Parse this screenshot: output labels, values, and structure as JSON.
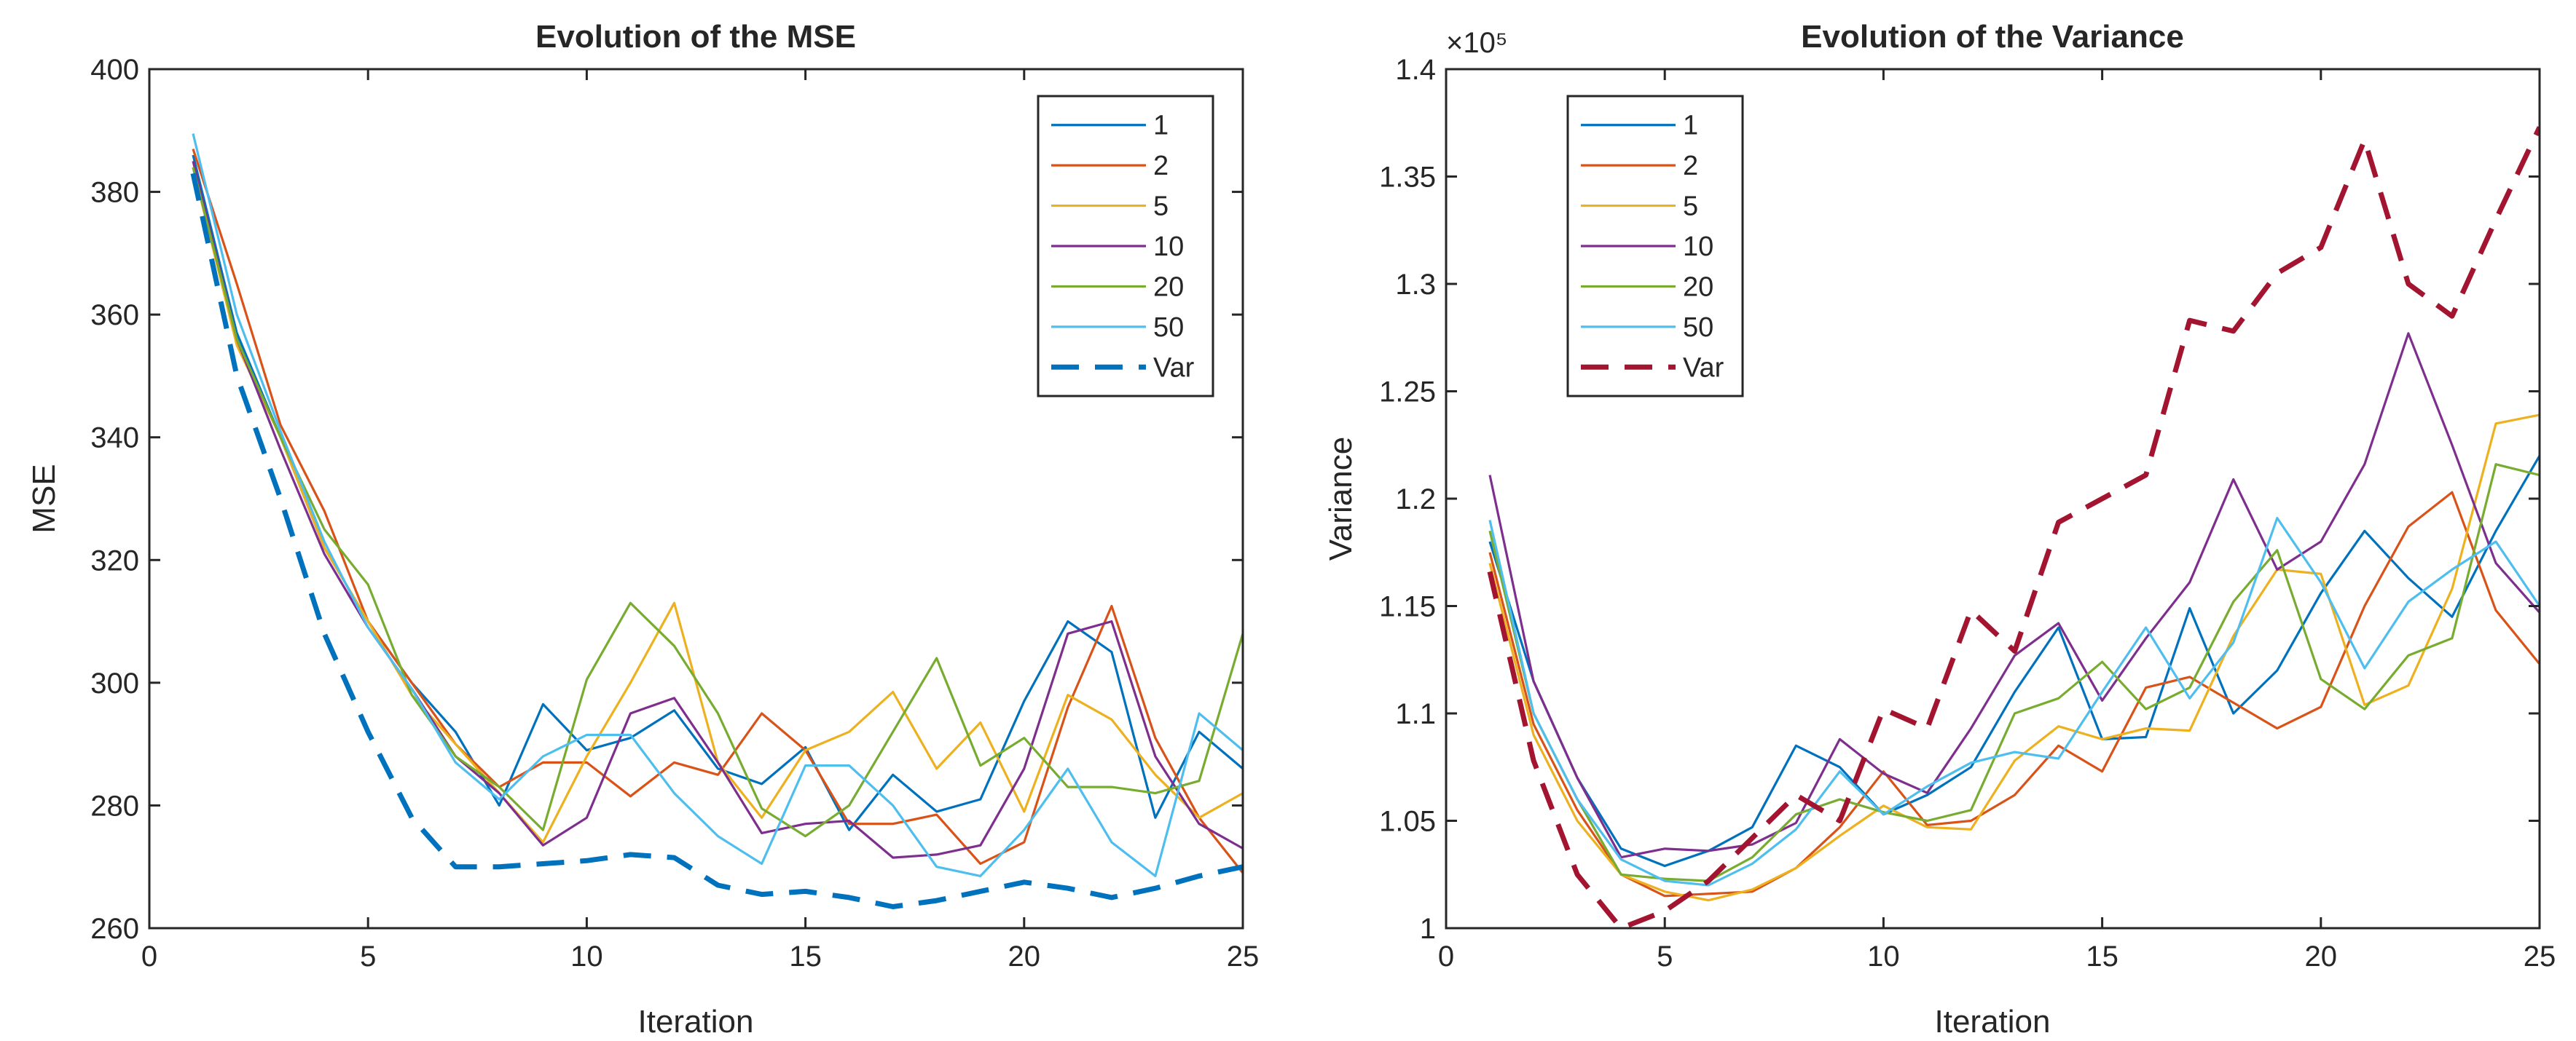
{
  "chart_data": [
    {
      "type": "line",
      "title": "Evolution of the MSE",
      "xlabel": "Iteration",
      "ylabel": "MSE",
      "xlim": [
        0,
        25
      ],
      "ylim": [
        260,
        400
      ],
      "xticks": [
        "0",
        "5",
        "10",
        "15",
        "20",
        "25"
      ],
      "yticks": [
        "260",
        "280",
        "300",
        "320",
        "340",
        "360",
        "380",
        "400"
      ],
      "exponent_label": "",
      "legend_position": "top-right",
      "x": [
        1,
        2,
        3,
        4,
        5,
        6,
        7,
        8,
        9,
        10,
        11,
        12,
        13,
        14,
        15,
        16,
        17,
        18,
        19,
        20,
        21,
        22,
        23,
        24,
        25
      ],
      "series": [
        {
          "name": "1",
          "color": "#0072BD",
          "dashed": false,
          "values": [
            386,
            357,
            340,
            322,
            310,
            300,
            292,
            280,
            296.5,
            289,
            291,
            295.5,
            286,
            283.5,
            289.5,
            276,
            285,
            279,
            281,
            297,
            310,
            305,
            278,
            292,
            286
          ]
        },
        {
          "name": "2",
          "color": "#D95319",
          "dashed": false,
          "values": [
            387,
            365,
            342,
            328,
            310,
            300,
            290,
            283,
            287,
            287,
            281.5,
            287,
            285,
            295,
            289,
            277,
            277,
            278.5,
            270.5,
            274,
            296,
            312.5,
            291,
            278,
            269
          ]
        },
        {
          "name": "5",
          "color": "#EDB120",
          "dashed": false,
          "values": [
            384,
            355,
            340,
            322,
            310,
            298,
            290,
            282,
            274,
            288,
            300,
            313,
            287,
            278,
            289,
            292,
            298.5,
            286,
            293.5,
            279,
            298,
            294,
            285,
            278,
            282
          ]
        },
        {
          "name": "10",
          "color": "#7E2F8E",
          "dashed": false,
          "values": [
            385,
            356,
            338,
            321,
            309,
            299,
            288,
            282,
            273.5,
            278,
            295,
            297.5,
            287,
            275.5,
            277,
            277.5,
            271.5,
            272,
            273.5,
            286,
            308,
            310,
            288,
            277,
            273
          ]
        },
        {
          "name": "20",
          "color": "#77AC30",
          "dashed": false,
          "values": [
            384,
            356,
            340,
            325,
            316,
            298,
            288,
            283,
            276,
            300.5,
            313,
            306,
            295,
            279.5,
            275,
            280,
            292,
            304,
            286.5,
            291,
            283,
            283,
            282,
            284,
            308
          ]
        },
        {
          "name": "50",
          "color": "#4DBEEE",
          "dashed": false,
          "values": [
            389.5,
            360,
            341,
            323,
            309,
            299,
            287,
            281,
            288,
            291.5,
            291.5,
            282,
            275,
            270.5,
            286.5,
            286.5,
            280,
            270,
            268.5,
            276,
            286,
            274,
            268.5,
            295,
            289
          ]
        },
        {
          "name": "Var",
          "color": "#0072BD",
          "dashed": true,
          "values": [
            383,
            350,
            330,
            308,
            292,
            278,
            270,
            270,
            270.5,
            271,
            272,
            271.5,
            267,
            265.5,
            266,
            265,
            263.5,
            264.5,
            266,
            267.5,
            266.5,
            265,
            266.5,
            268.5,
            270
          ]
        }
      ]
    },
    {
      "type": "line",
      "title": "Evolution of the Variance",
      "xlabel": "Iteration",
      "ylabel": "Variance",
      "xlim": [
        0,
        25
      ],
      "ylim": [
        100000,
        140000
      ],
      "xticks": [
        "0",
        "5",
        "10",
        "15",
        "20",
        "25"
      ],
      "yticks": [
        "1",
        "1.05",
        "1.1",
        "1.15",
        "1.2",
        "1.25",
        "1.3",
        "1.35",
        "1.4"
      ],
      "exponent_label": "×10⁵",
      "legend_position": "top-left",
      "x": [
        1,
        2,
        3,
        4,
        5,
        6,
        7,
        8,
        9,
        10,
        11,
        12,
        13,
        14,
        15,
        16,
        17,
        18,
        19,
        20,
        21,
        22,
        23,
        24,
        25
      ],
      "series": [
        {
          "name": "1",
          "color": "#0072BD",
          "dashed": false,
          "values": [
            118000,
            111500,
            107000,
            103700,
            102900,
            103600,
            104700,
            108500,
            107500,
            105300,
            106200,
            107500,
            111000,
            114000,
            108800,
            108900,
            114900,
            110000,
            112000,
            115600,
            118500,
            116300,
            114500,
            118500,
            122000
          ]
        },
        {
          "name": "2",
          "color": "#D95319",
          "dashed": false,
          "values": [
            117500,
            109500,
            105500,
            102500,
            101500,
            101600,
            101700,
            102800,
            104700,
            107300,
            104800,
            105000,
            106200,
            108500,
            107300,
            111200,
            111700,
            110500,
            109300,
            110300,
            115000,
            118700,
            120300,
            114800,
            112300
          ]
        },
        {
          "name": "5",
          "color": "#EDB120",
          "dashed": false,
          "values": [
            117000,
            109000,
            105000,
            102500,
            101700,
            101300,
            101800,
            102800,
            104300,
            105700,
            104700,
            104600,
            107800,
            109400,
            108800,
            109300,
            109200,
            113600,
            116700,
            116500,
            110400,
            111300,
            115800,
            123500,
            123900
          ]
        },
        {
          "name": "10",
          "color": "#7E2F8E",
          "dashed": false,
          "values": [
            121100,
            111500,
            107000,
            103300,
            103700,
            103600,
            103900,
            104900,
            108800,
            107200,
            106300,
            109300,
            112700,
            114200,
            110600,
            113500,
            116100,
            120900,
            116700,
            118000,
            121600,
            127700,
            122500,
            117000,
            114700
          ]
        },
        {
          "name": "20",
          "color": "#77AC30",
          "dashed": false,
          "values": [
            118500,
            110000,
            106000,
            102500,
            102300,
            102200,
            103300,
            105300,
            106000,
            105400,
            105000,
            105500,
            110000,
            110700,
            112400,
            110200,
            111200,
            115200,
            117600,
            111600,
            110200,
            112700,
            113500,
            121600,
            121100
          ]
        },
        {
          "name": "50",
          "color": "#4DBEEE",
          "dashed": false,
          "values": [
            119000,
            110000,
            106000,
            103200,
            102200,
            102000,
            103000,
            104600,
            107300,
            105300,
            106600,
            107700,
            108200,
            107900,
            111000,
            114000,
            110700,
            113300,
            119100,
            116100,
            112100,
            115200,
            116700,
            118000,
            115000
          ]
        },
        {
          "name": "Var",
          "color": "#A2142F",
          "dashed": true,
          "values": [
            116600,
            107800,
            102500,
            100000,
            100800,
            102200,
            104200,
            106200,
            105000,
            110200,
            109300,
            114800,
            112900,
            118900,
            120000,
            121100,
            128300,
            127800,
            130500,
            131700,
            136700,
            130000,
            128500,
            133000,
            137300
          ]
        }
      ]
    }
  ]
}
